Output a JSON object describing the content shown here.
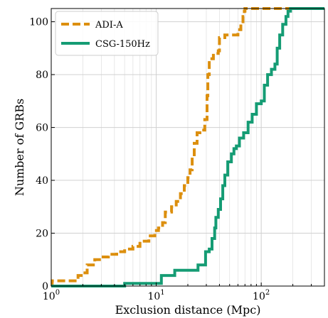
{
  "chart_data": {
    "type": "line",
    "title": "",
    "xlabel": "Exclusion distance (Mpc)",
    "ylabel": "Number of GRBs",
    "xscale": "log",
    "xlim": [
      1,
      400
    ],
    "ylim": [
      0,
      105
    ],
    "grid": true,
    "legend_position": "top-left",
    "x_ticks": [
      {
        "value": 1,
        "base": "10",
        "exp": "0"
      },
      {
        "value": 10,
        "base": "10",
        "exp": "1"
      },
      {
        "value": 100,
        "base": "10",
        "exp": "2"
      }
    ],
    "y_ticks": [
      0,
      20,
      40,
      60,
      80,
      100
    ],
    "series": [
      {
        "name": "ADI-A",
        "color": "#dc8f0e",
        "style": "dashed",
        "points": [
          [
            1.0,
            0
          ],
          [
            1.02,
            2
          ],
          [
            1.5,
            2
          ],
          [
            1.8,
            4
          ],
          [
            2.0,
            5
          ],
          [
            2.2,
            8
          ],
          [
            2.6,
            10
          ],
          [
            3.0,
            11
          ],
          [
            3.5,
            12
          ],
          [
            4.2,
            13
          ],
          [
            5.0,
            14
          ],
          [
            6.0,
            15
          ],
          [
            7.0,
            17
          ],
          [
            8.5,
            19
          ],
          [
            9.7,
            21
          ],
          [
            10.5,
            22
          ],
          [
            11.5,
            24
          ],
          [
            12.2,
            28
          ],
          [
            14.0,
            30
          ],
          [
            15.5,
            32
          ],
          [
            17.0,
            35
          ],
          [
            18.5,
            38
          ],
          [
            20.0,
            41
          ],
          [
            21.0,
            44
          ],
          [
            22.0,
            49
          ],
          [
            23.0,
            54
          ],
          [
            24.5,
            58
          ],
          [
            27.0,
            59
          ],
          [
            29.0,
            63
          ],
          [
            30.5,
            72
          ],
          [
            31.0,
            80
          ],
          [
            32.0,
            86
          ],
          [
            35.0,
            88
          ],
          [
            39.0,
            89
          ],
          [
            40.0,
            94
          ],
          [
            45.0,
            95
          ],
          [
            55.0,
            95
          ],
          [
            60.0,
            97
          ],
          [
            64.0,
            100
          ],
          [
            67.0,
            102
          ],
          [
            69.0,
            104
          ],
          [
            70.0,
            105
          ],
          [
            400.0,
            105
          ]
        ]
      },
      {
        "name": "CSG-150Hz",
        "color": "#159c74",
        "style": "solid",
        "points": [
          [
            1.0,
            0
          ],
          [
            4.9,
            0
          ],
          [
            5.0,
            1
          ],
          [
            11.0,
            1
          ],
          [
            11.2,
            4
          ],
          [
            14.0,
            4
          ],
          [
            15.0,
            6
          ],
          [
            24.0,
            6
          ],
          [
            25.0,
            8
          ],
          [
            28.5,
            8
          ],
          [
            29.5,
            13
          ],
          [
            32.0,
            14
          ],
          [
            34.0,
            18
          ],
          [
            36.0,
            22
          ],
          [
            37.0,
            26
          ],
          [
            39.0,
            29
          ],
          [
            41.0,
            33
          ],
          [
            43.0,
            38
          ],
          [
            45.0,
            42
          ],
          [
            48.0,
            47
          ],
          [
            52.0,
            50
          ],
          [
            55.0,
            52
          ],
          [
            58.0,
            53
          ],
          [
            62.0,
            56
          ],
          [
            68.0,
            58
          ],
          [
            75.0,
            62
          ],
          [
            82.0,
            65
          ],
          [
            90.0,
            69
          ],
          [
            100.0,
            70
          ],
          [
            107.0,
            76
          ],
          [
            115.0,
            80
          ],
          [
            125.0,
            82
          ],
          [
            135.0,
            84
          ],
          [
            142.0,
            90
          ],
          [
            150.0,
            95
          ],
          [
            160.0,
            99
          ],
          [
            172.0,
            102
          ],
          [
            180.0,
            104
          ],
          [
            190.0,
            105
          ],
          [
            400.0,
            105
          ]
        ]
      }
    ]
  }
}
